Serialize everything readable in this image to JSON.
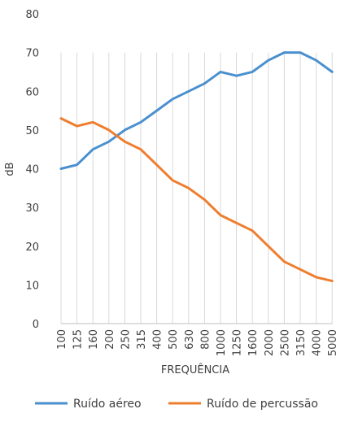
{
  "chart_data": {
    "type": "line",
    "title": "",
    "xlabel": "FREQUÊNCIA",
    "ylabel": "dB",
    "ylim": [
      0,
      80
    ],
    "yticks": [
      0,
      10,
      20,
      30,
      40,
      50,
      60,
      70,
      80
    ],
    "grid": "vertical",
    "legend_position": "bottom",
    "categories": [
      "100",
      "125",
      "160",
      "200",
      "250",
      "315",
      "400",
      "500",
      "630",
      "800",
      "1000",
      "1250",
      "1600",
      "2000",
      "2500",
      "3150",
      "4000",
      "5000"
    ],
    "series": [
      {
        "name": "Ruído aéreo",
        "color": "#4a90cf",
        "values": [
          40,
          41,
          45,
          47,
          50,
          52,
          55,
          58,
          60,
          62,
          65,
          64,
          65,
          68,
          70,
          70,
          68,
          65
        ]
      },
      {
        "name": "Ruído de percussão",
        "color": "#ef7d2e",
        "values": [
          53,
          51,
          52,
          50,
          47,
          45,
          41,
          37,
          35,
          32,
          28,
          26,
          24,
          20,
          16,
          14,
          12,
          11
        ]
      }
    ]
  }
}
